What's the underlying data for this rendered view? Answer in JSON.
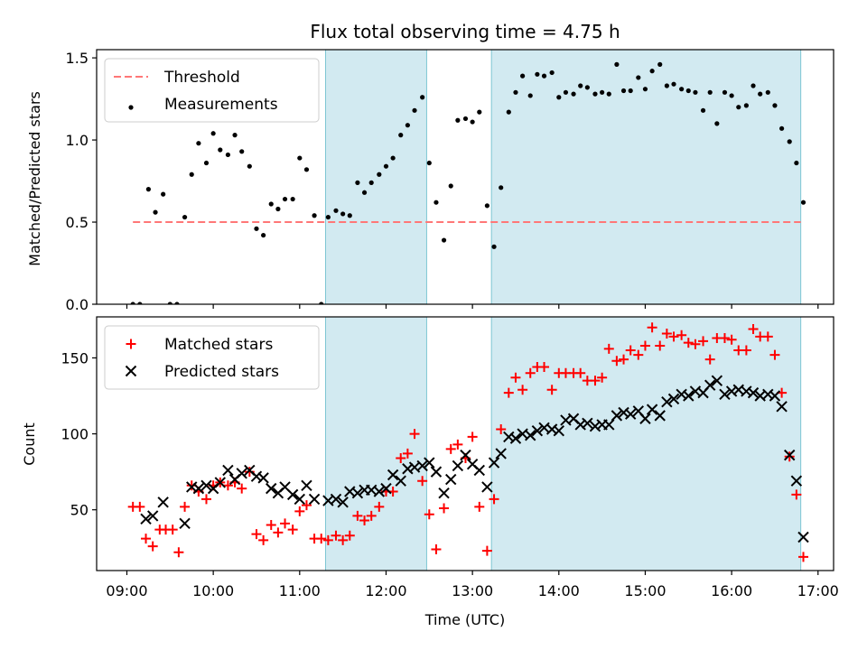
{
  "chart_data": [
    {
      "type": "scatter",
      "title": "Flux total observing time = 4.75 h",
      "xlabel": "",
      "ylabel": "Matched/Predicted stars",
      "ylim": [
        0,
        1.55
      ],
      "yticks": [
        0.0,
        0.5,
        1.0,
        1.5
      ],
      "ytick_labels": [
        "0.0",
        "0.5",
        "1.0",
        "1.5"
      ],
      "xlim": [
        8.65,
        17.18
      ],
      "grid": false,
      "legend_position": "top-left",
      "shaded_intervals": [
        [
          11.3,
          12.47
        ],
        [
          13.22,
          16.8
        ]
      ],
      "shade_color": "#add8e6",
      "threshold": {
        "name": "Threshold",
        "value": 0.5,
        "x_range": [
          9.07,
          16.8
        ],
        "color": "#ff7777"
      },
      "series": [
        {
          "name": "Measurements",
          "color": "#000000",
          "marker": "dot",
          "x": [
            9.07,
            9.15,
            9.25,
            9.33,
            9.42,
            9.5,
            9.58,
            9.67,
            9.75,
            9.83,
            9.92,
            10.0,
            10.08,
            10.17,
            10.25,
            10.33,
            10.42,
            10.5,
            10.58,
            10.67,
            10.75,
            10.83,
            10.92,
            11.0,
            11.08,
            11.17,
            11.25,
            11.33,
            11.42,
            11.5,
            11.58,
            11.67,
            11.75,
            11.83,
            11.92,
            12.0,
            12.08,
            12.17,
            12.25,
            12.33,
            12.42,
            12.5,
            12.58,
            12.67,
            12.75,
            12.83,
            12.92,
            13.0,
            13.08,
            13.17,
            13.25,
            13.33,
            13.42,
            13.5,
            13.58,
            13.67,
            13.75,
            13.83,
            13.92,
            14.0,
            14.08,
            14.17,
            14.25,
            14.33,
            14.42,
            14.5,
            14.58,
            14.67,
            14.75,
            14.83,
            14.92,
            15.0,
            15.08,
            15.17,
            15.25,
            15.33,
            15.42,
            15.5,
            15.58,
            15.67,
            15.75,
            15.83,
            15.92,
            16.0,
            16.08,
            16.17,
            16.25,
            16.33,
            16.42,
            16.5,
            16.58,
            16.67,
            16.75,
            16.83
          ],
          "y": [
            0.0,
            0.0,
            0.7,
            0.56,
            0.67,
            0.0,
            0.0,
            0.53,
            0.79,
            0.98,
            0.86,
            1.04,
            0.94,
            0.91,
            1.03,
            0.93,
            0.84,
            0.46,
            0.42,
            0.61,
            0.58,
            0.64,
            0.64,
            0.89,
            0.82,
            0.54,
            0.0,
            0.53,
            0.57,
            0.55,
            0.54,
            0.74,
            0.68,
            0.74,
            0.79,
            0.84,
            0.89,
            1.03,
            1.09,
            1.18,
            1.26,
            0.86,
            0.62,
            0.39,
            0.72,
            1.12,
            1.13,
            1.11,
            1.17,
            0.6,
            0.35,
            0.71,
            1.17,
            1.29,
            1.39,
            1.27,
            1.4,
            1.39,
            1.41,
            1.26,
            1.29,
            1.28,
            1.33,
            1.32,
            1.28,
            1.29,
            1.28,
            1.46,
            1.3,
            1.3,
            1.38,
            1.31,
            1.42,
            1.46,
            1.33,
            1.34,
            1.31,
            1.3,
            1.29,
            1.18,
            1.29,
            1.1,
            1.29,
            1.27,
            1.2,
            1.21,
            1.33,
            1.28,
            1.29,
            1.21,
            1.07,
            0.99,
            0.86,
            0.62
          ]
        }
      ]
    },
    {
      "type": "scatter",
      "title": "",
      "xlabel": "Time (UTC)",
      "ylabel": "Count",
      "ylim": [
        10,
        177
      ],
      "yticks": [
        50,
        100,
        150
      ],
      "ytick_labels": [
        "50",
        "100",
        "150"
      ],
      "xlim": [
        8.65,
        17.18
      ],
      "xticks": [
        9,
        10,
        11,
        12,
        13,
        14,
        15,
        16,
        17
      ],
      "xtick_labels": [
        "09:00",
        "10:00",
        "11:00",
        "12:00",
        "13:00",
        "14:00",
        "15:00",
        "16:00",
        "17:00"
      ],
      "grid": false,
      "legend_position": "top-left",
      "shaded_intervals": [
        [
          11.3,
          12.47
        ],
        [
          13.22,
          16.8
        ]
      ],
      "shade_color": "#add8e6",
      "series": [
        {
          "name": "Matched stars",
          "color": "#ff0000",
          "marker": "plus",
          "x": [
            9.07,
            9.15,
            9.22,
            9.3,
            9.38,
            9.45,
            9.53,
            9.6,
            9.67,
            9.75,
            9.83,
            9.92,
            10.0,
            10.08,
            10.17,
            10.25,
            10.33,
            10.42,
            10.5,
            10.58,
            10.67,
            10.75,
            10.83,
            10.92,
            11.0,
            11.08,
            11.17,
            11.25,
            11.33,
            11.42,
            11.5,
            11.58,
            11.67,
            11.75,
            11.83,
            11.92,
            12.0,
            12.08,
            12.17,
            12.25,
            12.33,
            12.42,
            12.5,
            12.58,
            12.67,
            12.75,
            12.83,
            12.92,
            13.0,
            13.08,
            13.17,
            13.25,
            13.33,
            13.42,
            13.5,
            13.58,
            13.67,
            13.75,
            13.83,
            13.92,
            14.0,
            14.08,
            14.17,
            14.25,
            14.33,
            14.42,
            14.5,
            14.58,
            14.67,
            14.75,
            14.83,
            14.92,
            15.0,
            15.08,
            15.17,
            15.25,
            15.33,
            15.42,
            15.5,
            15.58,
            15.67,
            15.75,
            15.83,
            15.92,
            16.0,
            16.08,
            16.17,
            16.25,
            16.33,
            16.42,
            16.5,
            16.58,
            16.67,
            16.75,
            16.83
          ],
          "y": [
            52,
            52,
            31,
            26,
            37,
            37,
            37,
            22,
            52,
            66,
            62,
            57,
            66,
            68,
            66,
            68,
            64,
            75,
            34,
            30,
            40,
            35,
            41,
            37,
            49,
            53,
            31,
            31,
            30,
            33,
            30,
            33,
            46,
            43,
            46,
            52,
            62,
            62,
            84,
            87,
            100,
            69,
            47,
            24,
            51,
            90,
            93,
            84,
            98,
            52,
            23,
            57,
            103,
            127,
            137,
            129,
            140,
            144,
            144,
            129,
            140,
            140,
            140,
            140,
            135,
            135,
            137,
            156,
            148,
            149,
            155,
            152,
            158,
            170,
            158,
            166,
            164,
            165,
            160,
            159,
            161,
            149,
            163,
            163,
            162,
            155,
            155,
            169,
            164,
            164,
            152,
            127,
            85,
            60,
            19
          ]
        },
        {
          "name": "Predicted stars",
          "color": "#000000",
          "marker": "x",
          "x": [
            9.22,
            9.3,
            9.42,
            9.67,
            9.75,
            9.83,
            9.92,
            10.0,
            10.08,
            10.17,
            10.25,
            10.33,
            10.42,
            10.5,
            10.58,
            10.67,
            10.75,
            10.83,
            10.92,
            11.0,
            11.08,
            11.17,
            11.33,
            11.42,
            11.5,
            11.58,
            11.67,
            11.75,
            11.83,
            11.92,
            12.0,
            12.08,
            12.17,
            12.25,
            12.33,
            12.42,
            12.5,
            12.58,
            12.67,
            12.75,
            12.83,
            12.92,
            13.0,
            13.08,
            13.17,
            13.25,
            13.33,
            13.42,
            13.5,
            13.58,
            13.67,
            13.75,
            13.83,
            13.92,
            14.0,
            14.08,
            14.17,
            14.25,
            14.33,
            14.42,
            14.5,
            14.58,
            14.67,
            14.75,
            14.83,
            14.92,
            15.0,
            15.08,
            15.17,
            15.25,
            15.33,
            15.42,
            15.5,
            15.58,
            15.67,
            15.75,
            15.83,
            15.92,
            16.0,
            16.08,
            16.17,
            16.25,
            16.33,
            16.42,
            16.5,
            16.58,
            16.67,
            16.75,
            16.83
          ],
          "y": [
            44,
            46,
            55,
            41,
            65,
            64,
            66,
            64,
            68,
            76,
            70,
            74,
            76,
            72,
            71,
            64,
            61,
            65,
            60,
            57,
            66,
            57,
            56,
            57,
            55,
            62,
            61,
            63,
            63,
            62,
            64,
            73,
            69,
            77,
            78,
            79,
            81,
            75,
            61,
            70,
            79,
            86,
            80,
            76,
            65,
            81,
            87,
            98,
            97,
            100,
            99,
            102,
            104,
            103,
            102,
            109,
            110,
            106,
            107,
            105,
            106,
            106,
            112,
            114,
            113,
            115,
            110,
            116,
            112,
            121,
            123,
            126,
            125,
            128,
            127,
            132,
            135,
            126,
            128,
            129,
            128,
            127,
            125,
            126,
            125,
            118,
            86,
            69,
            32
          ]
        }
      ]
    }
  ]
}
